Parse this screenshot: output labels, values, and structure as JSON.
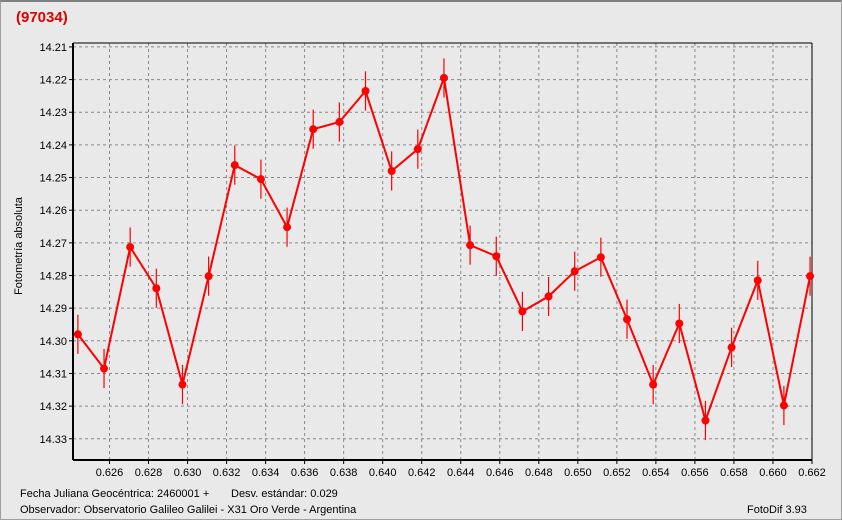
{
  "window": {
    "title": "(97034)"
  },
  "footer": {
    "jd_label": "Fecha Juliana Geocéntrica: 2460001 +",
    "std_label": "Desv. estándar: 0.029",
    "observer": "Observador: Observatorio Galileo Galilei - X31 Oro Verde - Argentina",
    "app": "FotoDif 3.93"
  },
  "chart_data": {
    "type": "line",
    "title": "(97034)",
    "xlabel": "",
    "ylabel": "Fotometría absoluta",
    "xlim": [
      0.62413,
      0.662
    ],
    "ylim": [
      14.2088,
      14.3365
    ],
    "y_inverted": true,
    "grid": true,
    "color": "#ff0000",
    "x_ticks": [
      "0.626",
      "0.628",
      "0.630",
      "0.632",
      "0.634",
      "0.636",
      "0.638",
      "0.640",
      "0.642",
      "0.644",
      "0.646",
      "0.648",
      "0.650",
      "0.652",
      "0.654",
      "0.656",
      "0.658",
      "0.660",
      "0.662"
    ],
    "y_ticks": [
      "14.21",
      "14.22",
      "14.23",
      "14.24",
      "14.25",
      "14.26",
      "14.27",
      "14.28",
      "14.29",
      "14.30",
      "14.31",
      "14.32",
      "14.33"
    ],
    "error": 0.006,
    "x": [
      0.62438,
      0.62572,
      0.62706,
      0.6284,
      0.62974,
      0.63108,
      0.63242,
      0.63376,
      0.6351,
      0.63644,
      0.63778,
      0.63912,
      0.64046,
      0.6418,
      0.64314,
      0.64448,
      0.64582,
      0.64716,
      0.6485,
      0.64984,
      0.65118,
      0.65252,
      0.65386,
      0.6552,
      0.65654,
      0.65788,
      0.65922,
      0.66056,
      0.6619
    ],
    "y": [
      14.298,
      14.3085,
      14.2713,
      14.2839,
      14.3134,
      14.2802,
      14.2462,
      14.2505,
      14.2652,
      14.2352,
      14.233,
      14.2235,
      14.248,
      14.2413,
      14.2195,
      14.2707,
      14.2741,
      14.291,
      14.2864,
      14.2787,
      14.2744,
      14.2934,
      14.3134,
      14.2947,
      14.3244,
      14.302,
      14.2815,
      14.3198,
      14.2802
    ]
  }
}
